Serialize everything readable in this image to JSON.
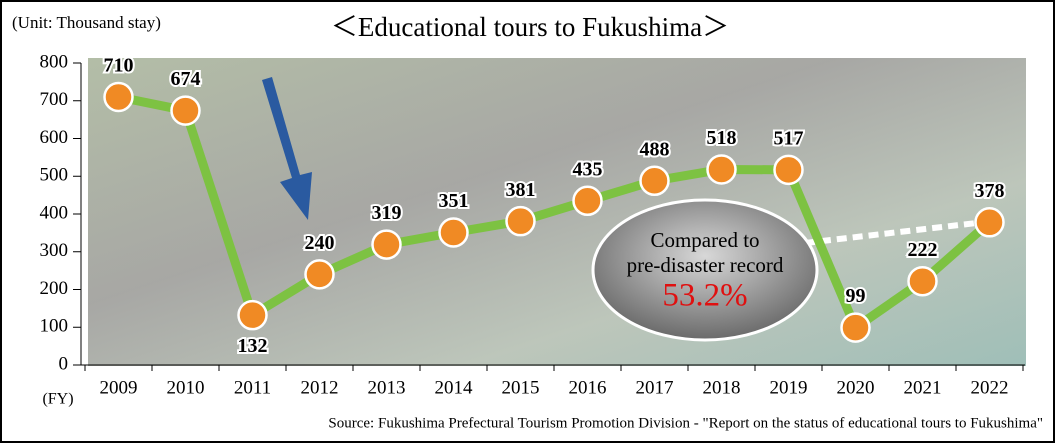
{
  "chart_data": {
    "type": "line",
    "title": "＜Educational tours to Fukushima＞",
    "unit_label": "(Unit: Thousand stay)",
    "x_axis_label": "(FY)",
    "source": "Source: Fukushima Prefectural Tourism Promotion Division - \"Report on the status of educational tours to Fukushima\"",
    "annotation": {
      "line1": "Compared to",
      "line2": "pre-disaster record",
      "ratio": "53.2%"
    },
    "categories": [
      "2009",
      "2010",
      "2011",
      "2012",
      "2013",
      "2014",
      "2015",
      "2016",
      "2017",
      "2018",
      "2019",
      "2020",
      "2021",
      "2022"
    ],
    "series": [
      {
        "name": "Educational tours",
        "color": "#7dc242",
        "marker_color": "#f08a24",
        "values": [
          710,
          674,
          132,
          240,
          319,
          351,
          381,
          435,
          488,
          518,
          517,
          99,
          222,
          378
        ]
      }
    ],
    "ylim": [
      0,
      800
    ],
    "yticks": [
      0,
      100,
      200,
      300,
      400,
      500,
      600,
      700,
      800
    ]
  }
}
